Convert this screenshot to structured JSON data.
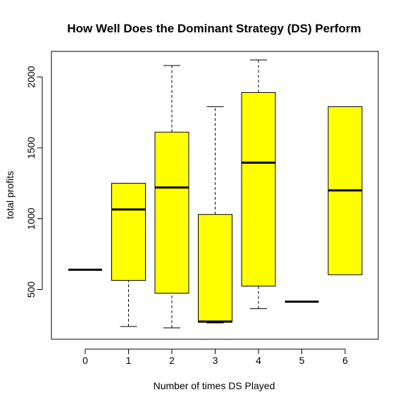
{
  "chart_data": {
    "type": "boxplot",
    "title": "How Well Does the Dominant Strategy (DS) Perform",
    "xlabel": "Number of times DS Played",
    "ylabel": "total profits",
    "categories": [
      "0",
      "1",
      "2",
      "3",
      "4",
      "5",
      "6"
    ],
    "yticks": [
      "500",
      "1000",
      "1500",
      "2000"
    ],
    "ylim": [
      150,
      2180
    ],
    "box_color": "#ffff00",
    "boxes": [
      {
        "category": "0",
        "whisker_low": 640,
        "q1": 640,
        "median": 640,
        "q3": 640,
        "whisker_high": 640
      },
      {
        "category": "1",
        "whisker_low": 240,
        "q1": 565,
        "median": 1065,
        "q3": 1250,
        "whisker_high": 1250
      },
      {
        "category": "2",
        "whisker_low": 230,
        "q1": 475,
        "median": 1220,
        "q3": 1610,
        "whisker_high": 2080
      },
      {
        "category": "3",
        "whisker_low": 265,
        "q1": 270,
        "median": 275,
        "q3": 1030,
        "whisker_high": 1790
      },
      {
        "category": "4",
        "whisker_low": 365,
        "q1": 525,
        "median": 1395,
        "q3": 1890,
        "whisker_high": 2120
      },
      {
        "category": "5",
        "whisker_low": 415,
        "q1": 415,
        "median": 415,
        "q3": 415,
        "whisker_high": 415
      },
      {
        "category": "6",
        "whisker_low": 605,
        "q1": 605,
        "median": 1200,
        "q3": 1790,
        "whisker_high": 1790
      }
    ]
  }
}
